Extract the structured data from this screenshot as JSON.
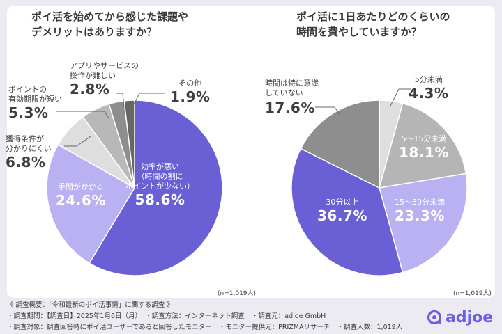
{
  "chart_data": [
    {
      "type": "pie",
      "title": [
        "ポイ活を始めてから感じた課題や",
        "デメリットはありますか？"
      ],
      "slices": [
        {
          "label": [
            "効率が悪い",
            "（時間の割に",
            "ポイントが少ない）"
          ],
          "value": 58.6,
          "value_label": "58.6%",
          "color": "#6a5fd4"
        },
        {
          "label": [
            "手間がかかる"
          ],
          "value": 24.6,
          "value_label": "24.6%",
          "color": "#b9b1f2"
        },
        {
          "label": [
            "獲得条件が",
            "分かりにくい"
          ],
          "value": 6.8,
          "value_label": "6.8%",
          "color": "#dedede"
        },
        {
          "label": [
            "ポイントの",
            "有効期限が短い"
          ],
          "value": 5.3,
          "value_label": "5.3%",
          "color": "#b8b8b8"
        },
        {
          "label": [
            "アプリやサービスの",
            "操作が難しい"
          ],
          "value": 2.8,
          "value_label": "2.8%",
          "color": "#8e8e8e"
        },
        {
          "label": [
            "その他"
          ],
          "value": 1.9,
          "value_label": "1.9%",
          "color": "#666666"
        }
      ],
      "note": "(n=1,019人)"
    },
    {
      "type": "pie",
      "title": [
        "ポイ活に1日あたりどのくらいの",
        "時間を費やしていますか？"
      ],
      "slices": [
        {
          "label": [
            "5分未満"
          ],
          "value": 4.3,
          "value_label": "4.3%",
          "color": "#dedede"
        },
        {
          "label": [
            "5〜15分未満"
          ],
          "value": 18.1,
          "value_label": "18.1%",
          "color": "#b5b5b5"
        },
        {
          "label": [
            "15〜30分未満"
          ],
          "value": 23.3,
          "value_label": "23.3%",
          "color": "#b9b1f2"
        },
        {
          "label": [
            "30分以上"
          ],
          "value": 36.7,
          "value_label": "36.7%",
          "color": "#6a5fd4"
        },
        {
          "label": [
            "時間は特に意識",
            "していない"
          ],
          "value": 17.6,
          "value_label": "17.6%",
          "color": "#8e8e8e"
        }
      ],
      "note": "(n=1,019人)"
    }
  ],
  "footer": {
    "line1": "《 調査概要：「令和最新のポイ活事情」に関する調査 》",
    "line2": [
      "・調査期間：【調査日】2025年1月6日（月）",
      "・調査方法：インターネット調査",
      "・調査元：adjoe GmbH"
    ],
    "line3": [
      "・調査対象：調査回答時にポイ活ユーザーであると回答したモニター",
      "・モニター提供元：PRIZMAリサーチ",
      "・調査人数：1,019人"
    ]
  },
  "brand": {
    "name": "adjoe",
    "color": "#6c5ee6"
  }
}
